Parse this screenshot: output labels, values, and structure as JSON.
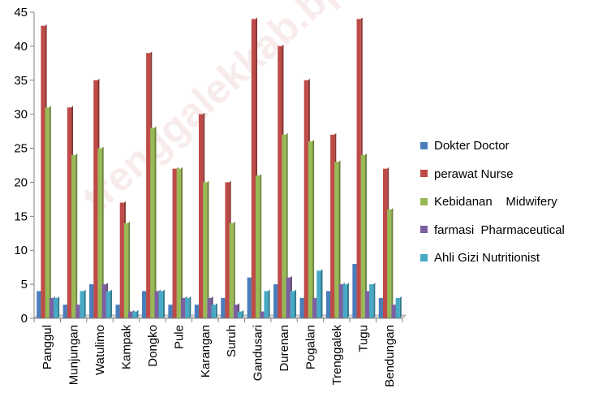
{
  "watermark": "trenggalekkab.bps.go.id",
  "chart_data": {
    "type": "bar",
    "categories": [
      "Panggul",
      "Munjungan",
      "Watulimo",
      "Kampak",
      "Dongko",
      "Pule",
      "Karangan",
      "Suruh",
      "Gandusari",
      "Durenan",
      "Pogalan",
      "Trenggalek",
      "Tugu",
      "Bendungan"
    ],
    "series": [
      {
        "name": "Dokter Doctor",
        "color": "#4a7ebb",
        "values": [
          4,
          2,
          5,
          2,
          4,
          2,
          2,
          3,
          6,
          5,
          3,
          4,
          8,
          3
        ]
      },
      {
        "name": "perawat Nurse",
        "color": "#be4b48",
        "values": [
          43,
          31,
          35,
          17,
          39,
          22,
          30,
          20,
          44,
          40,
          35,
          27,
          44,
          22
        ]
      },
      {
        "name": "Kebidanan    Midwifery",
        "color": "#98b954",
        "values": [
          31,
          24,
          25,
          14,
          28,
          22,
          20,
          14,
          21,
          27,
          26,
          23,
          24,
          16
        ]
      },
      {
        "name": "farmasi  Pharmaceutical",
        "color": "#7d60a0",
        "values": [
          3,
          2,
          5,
          1,
          4,
          3,
          3,
          2,
          1,
          6,
          3,
          5,
          4,
          2
        ]
      },
      {
        "name": "Ahli Gizi Nutritionist",
        "color": "#46aac5",
        "values": [
          3,
          4,
          4,
          1,
          4,
          3,
          2,
          1,
          4,
          4,
          7,
          5,
          5,
          3
        ]
      }
    ],
    "ylim": [
      0,
      45
    ],
    "yticks": [
      "0",
      "5",
      "10",
      "15",
      "20",
      "25",
      "30",
      "35",
      "40",
      "45"
    ],
    "grid": false,
    "legend_position": "right"
  }
}
